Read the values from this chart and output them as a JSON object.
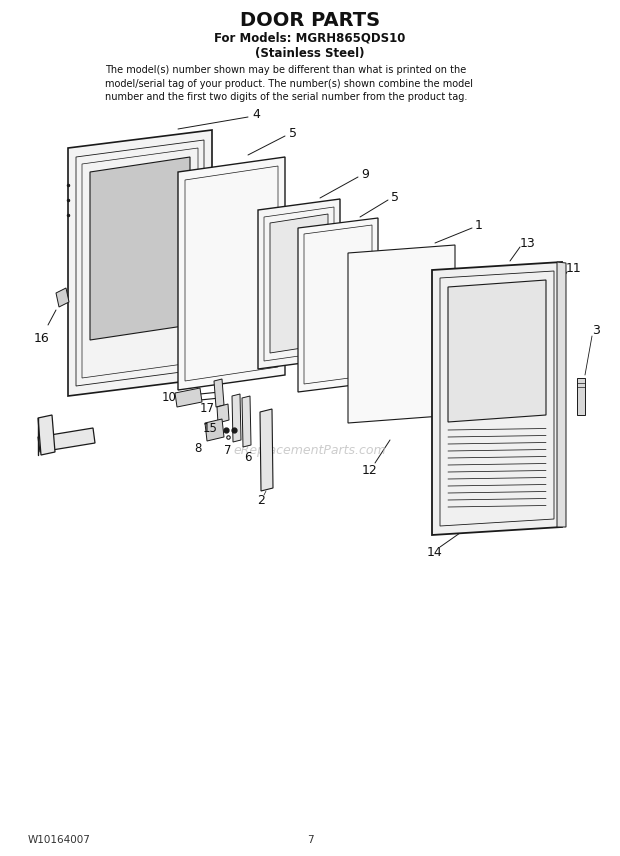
{
  "title": "DOOR PARTS",
  "subtitle1": "For Models: MGRH865QDS10",
  "subtitle2": "(Stainless Steel)",
  "disclaimer_line1": "The model(s) number shown may be different than what is printed on the",
  "disclaimer_line2": "model/serial tag of your product. The number(s) shown combine the model",
  "disclaimer_line3": "number and the first two digits of the serial number from the product tag.",
  "footer_left": "W10164007",
  "footer_center": "7",
  "bg_color": "#ffffff",
  "line_color": "#1a1a1a",
  "watermark_text": "eReplacementParts.com",
  "watermark_color": "#c0c0c0"
}
